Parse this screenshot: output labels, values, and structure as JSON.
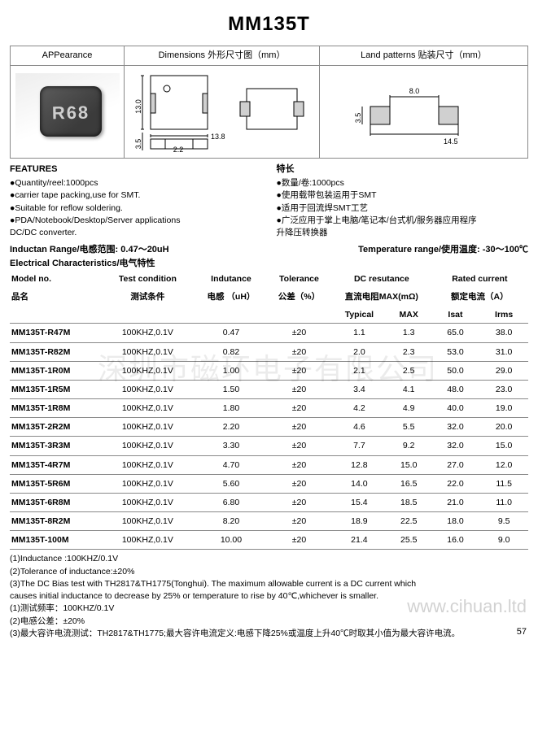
{
  "title": "MM135T",
  "top_headers": {
    "appearance": "APPearance",
    "dimensions": "Dimensions  外形尺寸图（mm）",
    "land": "Land  patterns   贴装尺寸（mm）"
  },
  "chip_label": "R68",
  "dims": {
    "w": "13.8",
    "h": "13.0",
    "pad_h": "3.5",
    "pad_w": "2.2"
  },
  "land": {
    "w": "14.5",
    "gap": "8.0",
    "h": "3.5"
  },
  "features": {
    "en_title": "FEATURES",
    "en": [
      "●Quantity/reel:1000pcs",
      "●carrier tape packing,use for SMT.",
      "●Suitable for reflow soldering.",
      "●PDA/Notebook/Desktop/Server applications",
      "  DC/DC converter."
    ],
    "zh_title": "特长",
    "zh": [
      "●数量/卷:1000pcs",
      "●使用载带包装运用于SMT",
      "●适用于回流焊SMT工艺",
      "●广泛应用于掌上电脑/笔记本/台式机/服务器应用程序",
      "  升降压转换器"
    ]
  },
  "range": {
    "inductance": "Inductan Range/电感范围:  0.47～20uH",
    "temp": "Temperature range/使用温度: -30～100℃"
  },
  "ec_title": "Electrical Characteristics/电气特性",
  "columns": {
    "model": {
      "l1": "Model no.",
      "l2": "品名"
    },
    "cond": {
      "l1": "Test condition",
      "l2": "测试条件"
    },
    "ind": {
      "l1": "Indutance",
      "l2": "电感 （uH）"
    },
    "tol": {
      "l1": "Tolerance",
      "l2": "公差（%）"
    },
    "dcr": {
      "l1": "DC resutance",
      "l2": "直流电阻MAX(mΩ)",
      "sub1": "Typical",
      "sub2": "MAX"
    },
    "cur": {
      "l1": "Rated current",
      "l2": "额定电流（A）",
      "sub1": "Isat",
      "sub2": "Irms"
    }
  },
  "rows": [
    {
      "model": "MM135T-R47M",
      "cond": "100KHZ,0.1V",
      "ind": "0.47",
      "tol": "±20",
      "dcr_t": "1.1",
      "dcr_m": "1.3",
      "isat": "65.0",
      "irms": "38.0"
    },
    {
      "model": "MM135T-R82M",
      "cond": "100KHZ,0.1V",
      "ind": "0.82",
      "tol": "±20",
      "dcr_t": "2.0",
      "dcr_m": "2.3",
      "isat": "53.0",
      "irms": "31.0"
    },
    {
      "model": "MM135T-1R0M",
      "cond": "100KHZ,0.1V",
      "ind": "1.00",
      "tol": "±20",
      "dcr_t": "2.1",
      "dcr_m": "2.5",
      "isat": "50.0",
      "irms": "29.0"
    },
    {
      "model": "MM135T-1R5M",
      "cond": "100KHZ,0.1V",
      "ind": "1.50",
      "tol": "±20",
      "dcr_t": "3.4",
      "dcr_m": "4.1",
      "isat": "48.0",
      "irms": "23.0"
    },
    {
      "model": "MM135T-1R8M",
      "cond": "100KHZ,0.1V",
      "ind": "1.80",
      "tol": "±20",
      "dcr_t": "4.2",
      "dcr_m": "4.9",
      "isat": "40.0",
      "irms": "19.0"
    },
    {
      "model": "MM135T-2R2M",
      "cond": "100KHZ,0.1V",
      "ind": "2.20",
      "tol": "±20",
      "dcr_t": "4.6",
      "dcr_m": "5.5",
      "isat": "32.0",
      "irms": "20.0"
    },
    {
      "model": "MM135T-3R3M",
      "cond": "100KHZ,0.1V",
      "ind": "3.30",
      "tol": "±20",
      "dcr_t": "7.7",
      "dcr_m": "9.2",
      "isat": "32.0",
      "irms": "15.0"
    },
    {
      "model": "MM135T-4R7M",
      "cond": "100KHZ,0.1V",
      "ind": "4.70",
      "tol": "±20",
      "dcr_t": "12.8",
      "dcr_m": "15.0",
      "isat": "27.0",
      "irms": "12.0"
    },
    {
      "model": "MM135T-5R6M",
      "cond": "100KHZ,0.1V",
      "ind": "5.60",
      "tol": "±20",
      "dcr_t": "14.0",
      "dcr_m": "16.5",
      "isat": "22.0",
      "irms": "11.5"
    },
    {
      "model": "MM135T-6R8M",
      "cond": "100KHZ,0.1V",
      "ind": "6.80",
      "tol": "±20",
      "dcr_t": "15.4",
      "dcr_m": "18.5",
      "isat": "21.0",
      "irms": "11.0"
    },
    {
      "model": "MM135T-8R2M",
      "cond": "100KHZ,0.1V",
      "ind": "8.20",
      "tol": "±20",
      "dcr_t": "18.9",
      "dcr_m": "22.5",
      "isat": "18.0",
      "irms": "9.5"
    },
    {
      "model": "MM135T-100M",
      "cond": "100KHZ,0.1V",
      "ind": "10.00",
      "tol": "±20",
      "dcr_t": "21.4",
      "dcr_m": "25.5",
      "isat": "16.0",
      "irms": "9.0"
    }
  ],
  "notes": [
    "(1)Inductance :100KHZ/0.1V",
    "(2)Tolerance of inductance:±20%",
    "(3)The DC Bias test with TH2817&TH1775(Tonghui). The maximum allowable current is a DC current which",
    "   causes initial inductance to decrease by 25%  or temperature to rise by 40℃,whichever is smaller.",
    "(1)测试频率：100KHZ/0.1V",
    "(2)电感公差：±20%",
    "(3)最大容许电流测试：TH2817&TH1775;最大容许电流定义:电感下降25%或温度上升40℃时取其小值为最大容许电流。"
  ],
  "watermarks": {
    "wm1": "深圳市磁环电子有限公司",
    "wm2": "www.cihuan.ltd"
  },
  "pagenum": "57",
  "colors": {
    "border": "#888888",
    "text": "#000000",
    "chip": "#444444",
    "land_fill": "#d0d0d0"
  }
}
